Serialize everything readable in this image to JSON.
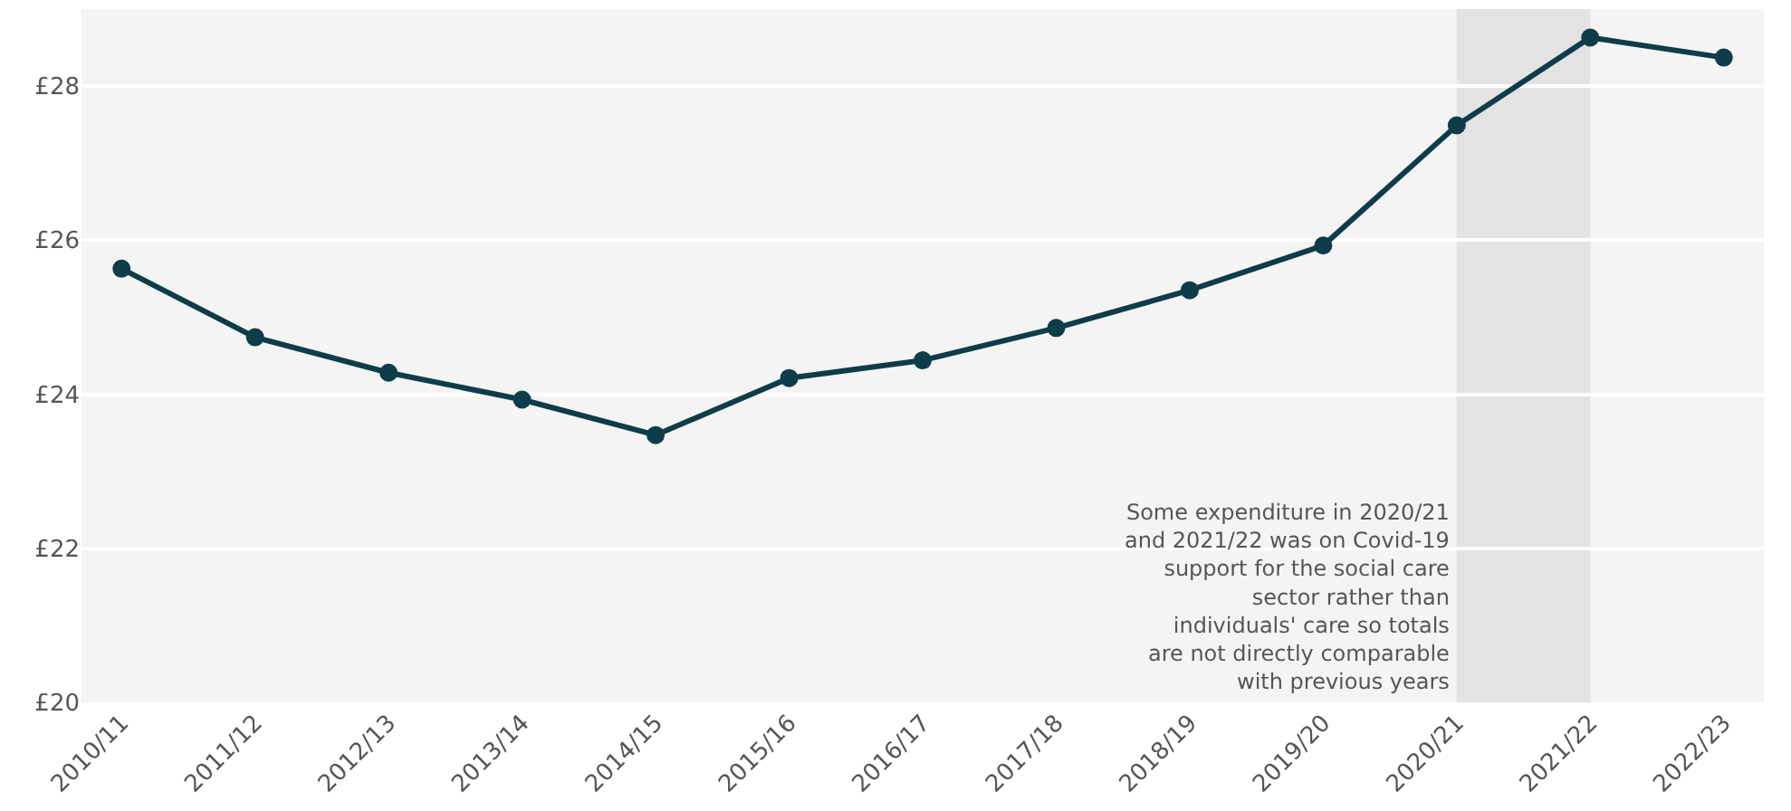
{
  "chart_data": {
    "type": "line",
    "categories": [
      "2010/11",
      "2011/12",
      "2012/13",
      "2013/14",
      "2014/15",
      "2015/16",
      "2016/17",
      "2017/18",
      "2018/19",
      "2019/20",
      "2020/21",
      "2021/22",
      "2022/23"
    ],
    "series": [
      {
        "color": "#0e3d49",
        "values": [
          25.63,
          24.74,
          24.28,
          23.93,
          23.47,
          24.21,
          24.44,
          24.86,
          25.35,
          25.93,
          27.49,
          28.63,
          28.37
        ]
      }
    ],
    "ylim": [
      20,
      29
    ],
    "yticks": [
      {
        "value": 20,
        "label": "£20"
      },
      {
        "value": 22,
        "label": "£22"
      },
      {
        "value": 24,
        "label": "£24"
      },
      {
        "value": 26,
        "label": "£26"
      },
      {
        "value": 28,
        "label": "£28"
      }
    ],
    "grid": "y",
    "marker": "circle",
    "line_style": "solid",
    "bands": [
      {
        "axis": "x",
        "from": "2020/21",
        "to": "2021/22",
        "color": "#e3e3e3"
      }
    ],
    "annotations": [
      "Some expenditure in 2020/21 and 2021/22 was on Covid-19 support for the social care sector rather than individuals' care so totals are not directly comparable with previous years"
    ]
  }
}
